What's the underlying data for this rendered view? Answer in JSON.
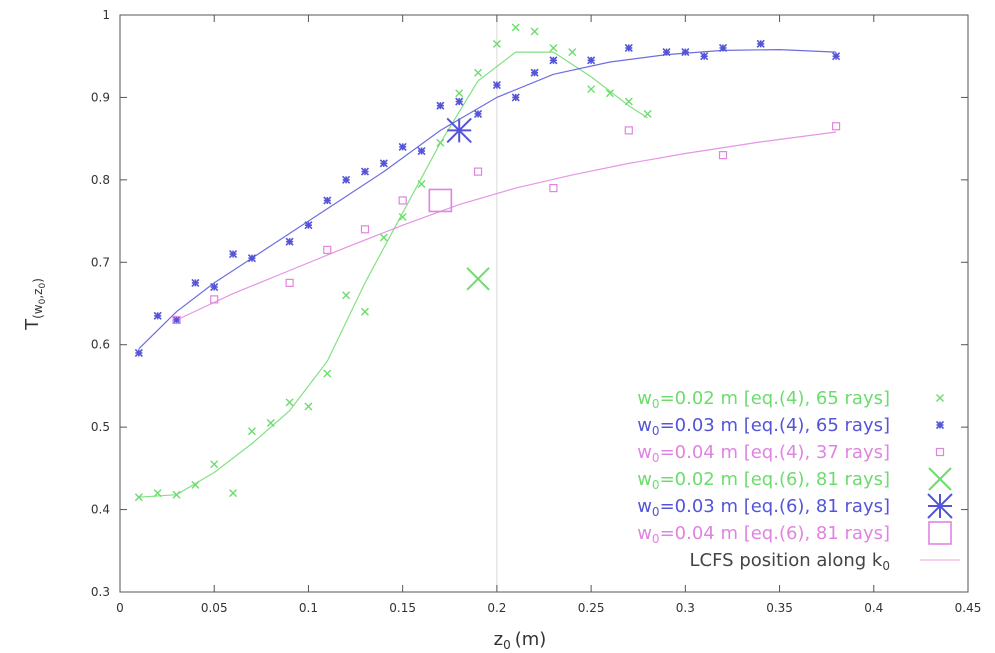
{
  "chart_data": {
    "type": "scatter",
    "title": "",
    "xlabel_main": "z",
    "xlabel_sub": "0",
    "xlabel_unit": "(m)",
    "ylabel_main": "T",
    "ylabel_sub": "(w",
    "ylabel_sub_2": "0",
    "ylabel_sub_3": ",z",
    "ylabel_sub_4": "0",
    "ylabel_sub_5": ")",
    "xlim": [
      0,
      0.45
    ],
    "ylim": [
      0.3,
      1.0
    ],
    "xticks": [
      0,
      0.05,
      0.1,
      0.15,
      0.2,
      0.25,
      0.3,
      0.35,
      0.4,
      0.45
    ],
    "xtick_labels": [
      "0",
      "0.05",
      "0.1",
      "0.15",
      "0.2",
      "0.25",
      "0.3",
      "0.35",
      "0.4",
      "0.45"
    ],
    "yticks": [
      0.3,
      0.4,
      0.5,
      0.6,
      0.7,
      0.8,
      0.9,
      1.0
    ],
    "ytick_labels": [
      "0.3",
      "0.4",
      "0.5",
      "0.6",
      "0.7",
      "0.8",
      "0.9",
      "1"
    ],
    "grid": false,
    "legend_position": "bottom-right",
    "reference_line": {
      "x": 0.2,
      "label": "LCFS position along k",
      "label_sub": "0",
      "color": "#f0a0d8"
    },
    "series": [
      {
        "legend_prefix": "w",
        "legend_sub": "0",
        "legend_rest": "=0.02 m [eq.(4), 65 rays]",
        "color": "#6ddc6d",
        "marker": "x",
        "x": [
          0.01,
          0.02,
          0.03,
          0.04,
          0.05,
          0.06,
          0.07,
          0.08,
          0.09,
          0.1,
          0.11,
          0.12,
          0.13,
          0.14,
          0.15,
          0.16,
          0.17,
          0.18,
          0.19,
          0.2,
          0.21,
          0.22,
          0.23,
          0.24,
          0.25,
          0.26,
          0.27,
          0.28
        ],
        "y": [
          0.415,
          0.42,
          0.418,
          0.43,
          0.455,
          0.42,
          0.495,
          0.505,
          0.53,
          0.525,
          0.565,
          0.66,
          0.64,
          0.73,
          0.755,
          0.795,
          0.845,
          0.905,
          0.93,
          0.965,
          0.985,
          0.98,
          0.96,
          0.955,
          0.91,
          0.905,
          0.895,
          0.88
        ],
        "fit_x": [
          0.01,
          0.03,
          0.05,
          0.07,
          0.09,
          0.11,
          0.13,
          0.15,
          0.17,
          0.19,
          0.21,
          0.23,
          0.25,
          0.27,
          0.28
        ],
        "fit_y": [
          0.415,
          0.418,
          0.445,
          0.48,
          0.52,
          0.58,
          0.675,
          0.76,
          0.845,
          0.92,
          0.955,
          0.955,
          0.925,
          0.89,
          0.875
        ]
      },
      {
        "legend_prefix": "w",
        "legend_sub": "0",
        "legend_rest": "=0.03 m [eq.(4), 65 rays]",
        "color": "#5454d8",
        "marker": "star",
        "x": [
          0.01,
          0.02,
          0.03,
          0.04,
          0.05,
          0.06,
          0.07,
          0.09,
          0.1,
          0.11,
          0.12,
          0.13,
          0.14,
          0.15,
          0.16,
          0.17,
          0.18,
          0.19,
          0.2,
          0.21,
          0.22,
          0.23,
          0.25,
          0.27,
          0.29,
          0.3,
          0.31,
          0.32,
          0.34,
          0.38
        ],
        "y": [
          0.59,
          0.635,
          0.63,
          0.675,
          0.67,
          0.71,
          0.705,
          0.725,
          0.745,
          0.775,
          0.8,
          0.81,
          0.82,
          0.84,
          0.835,
          0.89,
          0.895,
          0.88,
          0.915,
          0.9,
          0.93,
          0.945,
          0.945,
          0.96,
          0.955,
          0.955,
          0.95,
          0.96,
          0.965,
          0.95
        ],
        "fit_x": [
          0.01,
          0.03,
          0.05,
          0.08,
          0.11,
          0.14,
          0.17,
          0.2,
          0.23,
          0.26,
          0.29,
          0.32,
          0.35,
          0.38
        ],
        "fit_y": [
          0.595,
          0.64,
          0.675,
          0.72,
          0.765,
          0.81,
          0.86,
          0.9,
          0.928,
          0.943,
          0.952,
          0.957,
          0.958,
          0.955
        ]
      },
      {
        "legend_prefix": "w",
        "legend_sub": "0",
        "legend_rest": "=0.04 m [eq.(4), 37 rays]",
        "color": "#e084e0",
        "marker": "square",
        "x": [
          0.03,
          0.05,
          0.09,
          0.11,
          0.13,
          0.15,
          0.19,
          0.23,
          0.27,
          0.32,
          0.38
        ],
        "y": [
          0.63,
          0.655,
          0.675,
          0.715,
          0.74,
          0.775,
          0.81,
          0.79,
          0.86,
          0.83,
          0.865
        ],
        "fit_x": [
          0.03,
          0.06,
          0.09,
          0.12,
          0.15,
          0.18,
          0.21,
          0.24,
          0.27,
          0.3,
          0.34,
          0.38
        ],
        "fit_y": [
          0.63,
          0.662,
          0.69,
          0.718,
          0.745,
          0.77,
          0.79,
          0.806,
          0.82,
          0.832,
          0.846,
          0.858
        ]
      },
      {
        "legend_prefix": "w",
        "legend_sub": "0",
        "legend_rest": "=0.02 m [eq.(6), 81 rays]",
        "color": "#6ddc6d",
        "marker": "bigx",
        "x": [
          0.19
        ],
        "y": [
          0.68
        ]
      },
      {
        "legend_prefix": "w",
        "legend_sub": "0",
        "legend_rest": "=0.03 m [eq.(6), 81 rays]",
        "color": "#5454d8",
        "marker": "bigstar",
        "x": [
          0.18
        ],
        "y": [
          0.86
        ]
      },
      {
        "legend_prefix": "w",
        "legend_sub": "0",
        "legend_rest": "=0.04 m [eq.(6), 81 rays]",
        "color": "#e084e0",
        "marker": "bigsquare",
        "x": [
          0.17
        ],
        "y": [
          0.775
        ]
      }
    ]
  }
}
